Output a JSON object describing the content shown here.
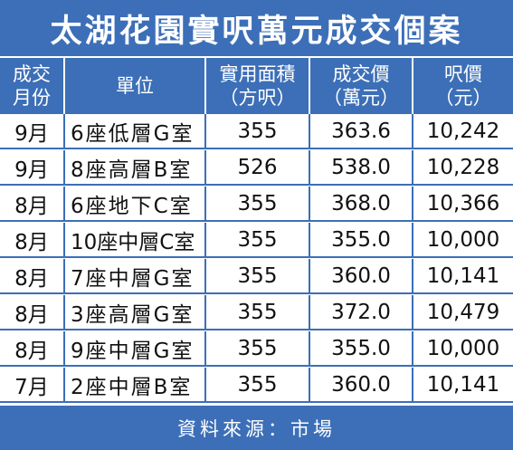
{
  "title": "太湖花園實呎萬元成交個案",
  "columns": [
    {
      "line1": "成交",
      "line2": "月份"
    },
    {
      "line1": "單位",
      "line2": ""
    },
    {
      "line1": "實用面積",
      "line2": "（方呎）"
    },
    {
      "line1": "成交價",
      "line2": "（萬元）"
    },
    {
      "line1": "呎價",
      "line2": "（元）"
    }
  ],
  "rows": [
    {
      "month": "9月",
      "unit": "6座低層G室",
      "area": "355",
      "price": "363.6",
      "psf": "10,242"
    },
    {
      "month": "9月",
      "unit": "8座高層B室",
      "area": "526",
      "price": "538.0",
      "psf": "10,228"
    },
    {
      "month": "8月",
      "unit": "6座地下C室",
      "area": "355",
      "price": "368.0",
      "psf": "10,366"
    },
    {
      "month": "8月",
      "unit": "10座中層C室",
      "area": "355",
      "price": "355.0",
      "psf": "10,000"
    },
    {
      "month": "8月",
      "unit": "7座中層G室",
      "area": "355",
      "price": "360.0",
      "psf": "10,141"
    },
    {
      "month": "8月",
      "unit": "3座高層G室",
      "area": "355",
      "price": "372.0",
      "psf": "10,479"
    },
    {
      "month": "8月",
      "unit": "9座中層G室",
      "area": "355",
      "price": "355.0",
      "psf": "10,000"
    },
    {
      "month": "7月",
      "unit": "2座中層B室",
      "area": "355",
      "price": "360.0",
      "psf": "10,141"
    }
  ],
  "footer": "資料來源：市場",
  "colors": {
    "accent": "#3c6fb7",
    "text": "#111111"
  }
}
